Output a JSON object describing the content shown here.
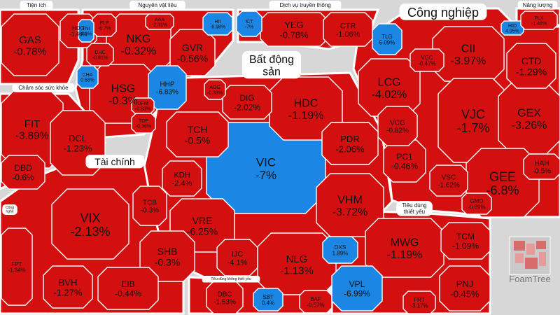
{
  "chart_data": {
    "type": "treemap",
    "brand": "FoamTree",
    "colors": {
      "down": "#d40f0f",
      "up": "#1b86e3",
      "border": "#ffffff",
      "background": "#d7d7d7"
    },
    "groups": [
      {
        "name": "Tiện ích",
        "tiles": [
          {
            "ticker": "GAS",
            "change": "-0.78%"
          },
          {
            "ticker": "HDG",
            "change": "-1.46%"
          }
        ]
      },
      {
        "name": "Nguyên vật liệu",
        "tiles": [
          {
            "ticker": "NKG",
            "change": "-0.32%"
          },
          {
            "ticker": "HSG",
            "change": "-0.3%"
          },
          {
            "ticker": "GVR",
            "change": "-0.56%"
          },
          {
            "ticker": "HHP",
            "change": "-6.83%"
          },
          {
            "ticker": "HII",
            "change": "-6.98%"
          },
          {
            "ticker": "PLP",
            "change": "-6.7%"
          },
          {
            "ticker": "AAA",
            "change": "-2.31%"
          },
          {
            "ticker": "DHC",
            "change": "-0.81%"
          },
          {
            "ticker": "TNI",
            "change": "4.9%"
          },
          {
            "ticker": "CHA",
            "change": "0.68%"
          },
          {
            "ticker": "DPM",
            "change": "-0.83%"
          },
          {
            "ticker": "TDP",
            "change": "-0.36%"
          }
        ]
      },
      {
        "name": "Dịch vụ truyền thông",
        "tiles": [
          {
            "ticker": "YEG",
            "change": "-0.78%"
          },
          {
            "ticker": "CTR",
            "change": "-1.06%"
          },
          {
            "ticker": "ICT",
            "change": "-7%"
          }
        ]
      },
      {
        "name": "Công nghiệp",
        "tiles": [
          {
            "ticker": "CII",
            "change": "-3.97%"
          },
          {
            "ticker": "VJC",
            "change": "-1.7%"
          },
          {
            "ticker": "GEX",
            "change": "-3.26%"
          },
          {
            "ticker": "GEE",
            "change": "-6.8%"
          },
          {
            "ticker": "LCG",
            "change": "-4.02%"
          },
          {
            "ticker": "CTD",
            "change": "-1.29%"
          },
          {
            "ticker": "PC1",
            "change": "-0.46%"
          },
          {
            "ticker": "VSC",
            "change": "-1.62%"
          },
          {
            "ticker": "VCG",
            "change": "-0.82%"
          },
          {
            "ticker": "TLG",
            "change": "5.09%"
          },
          {
            "ticker": "VGC",
            "change": "-0.47%"
          },
          {
            "ticker": "HAH",
            "change": "-0.5%"
          },
          {
            "ticker": "GMD",
            "change": "-0.89%"
          },
          {
            "ticker": "HID",
            "change": "4.95%"
          }
        ]
      },
      {
        "name": "Năng lượng",
        "tiles": [
          {
            "ticker": "PLX",
            "change": "-1.48%"
          }
        ]
      },
      {
        "name": "Chăm sóc sức khỏe",
        "tiles": [
          {
            "ticker": "FIT",
            "change": "-3.89%"
          },
          {
            "ticker": "DCL",
            "change": "-1.23%"
          },
          {
            "ticker": "DBD",
            "change": "-0.6%"
          }
        ]
      },
      {
        "name": "Bất động sản",
        "tiles": [
          {
            "ticker": "VIC",
            "change": "-7%"
          },
          {
            "ticker": "HDC",
            "change": "-1.19%"
          },
          {
            "ticker": "VHM",
            "change": "-3.72%"
          },
          {
            "ticker": "NLG",
            "change": "-1.13%"
          },
          {
            "ticker": "TCH",
            "change": "-0.5%"
          },
          {
            "ticker": "VRE",
            "change": "-6.25%"
          },
          {
            "ticker": "PDR",
            "change": "-2.06%"
          },
          {
            "ticker": "DIG",
            "change": "-2.02%"
          },
          {
            "ticker": "KDH",
            "change": "-2.4%"
          },
          {
            "ticker": "IJC",
            "change": "-4.1%"
          },
          {
            "ticker": "AGG",
            "change": "-0.33%"
          },
          {
            "ticker": "DXS",
            "change": "1.89%"
          }
        ]
      },
      {
        "name": "Tài chính",
        "tiles": [
          {
            "ticker": "VIX",
            "change": "-2.13%"
          },
          {
            "ticker": "SHB",
            "change": "-0.3%"
          },
          {
            "ticker": "BVH",
            "change": "-1.27%"
          },
          {
            "ticker": "EIB",
            "change": "-0.44%"
          },
          {
            "ticker": "TCB",
            "change": "-0.3%"
          },
          {
            "ticker": "FPT",
            "change": "-1.34%"
          }
        ]
      },
      {
        "name": "Tiêu dùng không thiết yếu",
        "tiles": [
          {
            "ticker": "DBC",
            "change": "-1.53%"
          },
          {
            "ticker": "SBT",
            "change": "0.4%"
          },
          {
            "ticker": "BAF",
            "change": "-0.57%"
          }
        ]
      },
      {
        "name": "Tiêu dùng thiết yếu",
        "tiles": [
          {
            "ticker": "MWG",
            "change": "-1.19%"
          },
          {
            "ticker": "TCM",
            "change": "-1.09%"
          },
          {
            "ticker": "PNJ",
            "change": "-0.45%"
          },
          {
            "ticker": "VPL",
            "change": "-6.99%"
          },
          {
            "ticker": "FRT",
            "change": "-3.17%"
          }
        ]
      },
      {
        "name": "Công nghệ",
        "tiles": []
      }
    ]
  }
}
